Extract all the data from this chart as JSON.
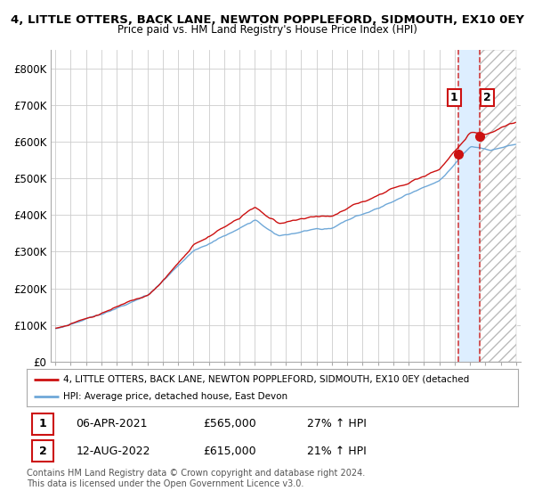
{
  "title": "4, LITTLE OTTERS, BACK LANE, NEWTON POPPLEFORD, SIDMOUTH, EX10 0EY",
  "subtitle": "Price paid vs. HM Land Registry's House Price Index (HPI)",
  "ylim": [
    0,
    850000
  ],
  "yticks": [
    0,
    100000,
    200000,
    300000,
    400000,
    500000,
    600000,
    700000,
    800000
  ],
  "ytick_labels": [
    "£0",
    "£100K",
    "£200K",
    "£300K",
    "£400K",
    "£500K",
    "£600K",
    "£700K",
    "£800K"
  ],
  "hpi_color": "#6fa8d8",
  "price_color": "#cc1111",
  "background_color": "#ffffff",
  "grid_color": "#cccccc",
  "shade_color": "#ddeeff",
  "hatch_color": "#cccccc",
  "legend_line1": "4, LITTLE OTTERS, BACK LANE, NEWTON POPPLEFORD, SIDMOUTH, EX10 0EY (detached",
  "legend_line2": "HPI: Average price, detached house, East Devon",
  "sale1_date": "06-APR-2021",
  "sale1_price": "£565,000",
  "sale1_pct": "27% ↑ HPI",
  "sale2_date": "12-AUG-2022",
  "sale2_price": "£615,000",
  "sale2_pct": "21% ↑ HPI",
  "footer": "Contains HM Land Registry data © Crown copyright and database right 2024.\nThis data is licensed under the Open Government Licence v3.0.",
  "sale1_year": 2021.27,
  "sale1_value": 565000,
  "sale2_year": 2022.62,
  "sale2_value": 615000,
  "xstart": 1995,
  "xend": 2025
}
